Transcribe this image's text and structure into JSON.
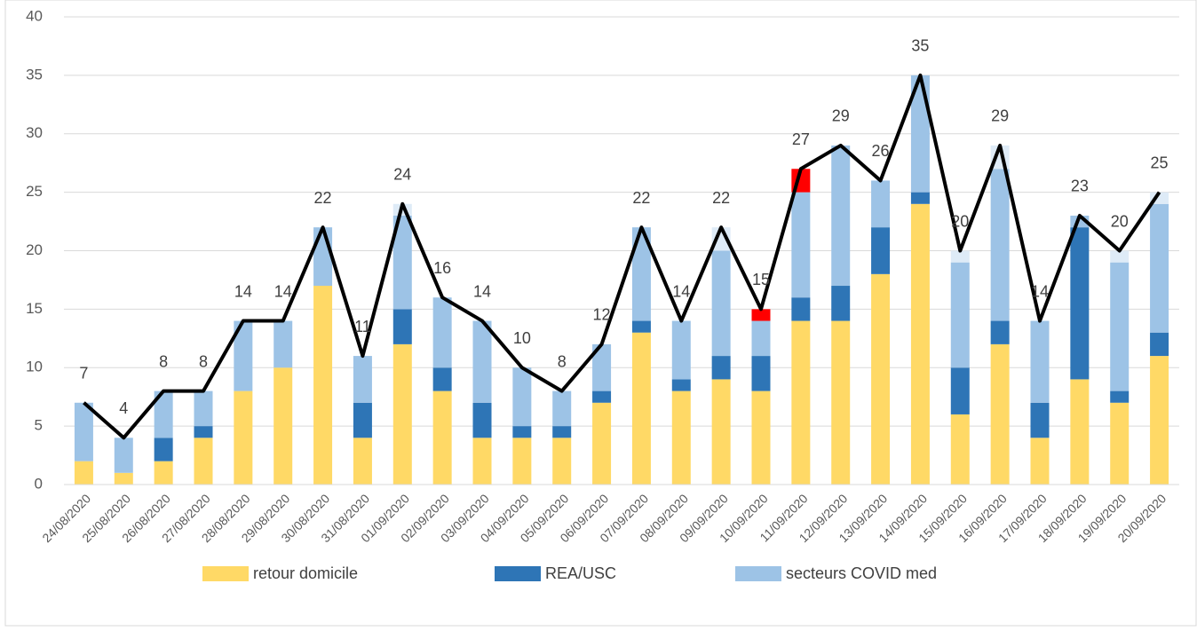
{
  "chart_data": {
    "type": "bar",
    "categories": [
      "24/08/2020",
      "25/08/2020",
      "26/08/2020",
      "27/08/2020",
      "28/08/2020",
      "29/08/2020",
      "30/08/2020",
      "31/08/2020",
      "01/09/2020",
      "02/09/2020",
      "03/09/2020",
      "04/09/2020",
      "05/09/2020",
      "06/09/2020",
      "07/09/2020",
      "08/09/2020",
      "09/09/2020",
      "10/09/2020",
      "11/09/2020",
      "12/09/2020",
      "13/09/2020",
      "14/09/2020",
      "15/09/2020",
      "16/09/2020",
      "17/09/2020",
      "18/09/2020",
      "19/09/2020",
      "20/09/2020"
    ],
    "series": [
      {
        "name": "retour domicile",
        "color": "#ffd966",
        "values": [
          2,
          1,
          2,
          4,
          8,
          10,
          17,
          4,
          12,
          8,
          4,
          4,
          4,
          7,
          13,
          8,
          9,
          8,
          14,
          14,
          18,
          24,
          6,
          12,
          4,
          9,
          7,
          11
        ]
      },
      {
        "name": "REA/USC",
        "color": "#2e75b6",
        "values": [
          0,
          0,
          2,
          1,
          0,
          0,
          0,
          3,
          3,
          2,
          3,
          1,
          1,
          1,
          1,
          1,
          2,
          3,
          2,
          3,
          4,
          1,
          4,
          2,
          3,
          13,
          1,
          2
        ]
      },
      {
        "name": "secteurs COVID med",
        "color": "#9dc3e6",
        "values": [
          5,
          3,
          4,
          3,
          6,
          4,
          5,
          4,
          8,
          6,
          7,
          5,
          3,
          4,
          8,
          5,
          9,
          3,
          9,
          12,
          4,
          10,
          9,
          13,
          7,
          1,
          11,
          11
        ]
      },
      {
        "color": "#ff0000",
        "values": [
          0,
          0,
          0,
          0,
          0,
          0,
          0,
          0,
          0,
          0,
          0,
          0,
          0,
          0,
          0,
          0,
          0,
          1,
          2,
          0,
          0,
          0,
          0,
          0,
          0,
          0,
          0,
          0
        ]
      },
      {
        "color": "#deebf7",
        "values": [
          0,
          0,
          0,
          0,
          0,
          0,
          0,
          0,
          1,
          0,
          0,
          0,
          0,
          0,
          0,
          0,
          2,
          0,
          0,
          0,
          0,
          0,
          1,
          2,
          0,
          0,
          1,
          1
        ]
      },
      {
        "type": "line",
        "color": "#000000",
        "values": [
          7,
          4,
          8,
          8,
          14,
          14,
          22,
          11,
          24,
          16,
          14,
          10,
          8,
          12,
          22,
          14,
          22,
          15,
          27,
          29,
          26,
          35,
          20,
          29,
          14,
          23,
          20,
          25
        ]
      }
    ],
    "ylim": [
      0,
      40
    ],
    "yticks": [
      0,
      5,
      10,
      15,
      20,
      25,
      30,
      35,
      40
    ],
    "grid": true
  }
}
